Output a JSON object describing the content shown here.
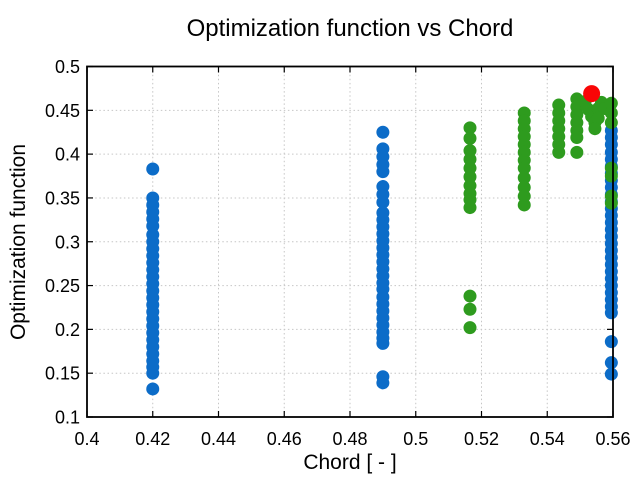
{
  "figure": {
    "title": "Optimization function vs Chord",
    "xlabel": "Chord [ - ]",
    "ylabel": "Optimization function"
  },
  "chart_data": {
    "type": "scatter",
    "title": "Optimization function vs Chord",
    "xlabel": "Chord [ - ]",
    "ylabel": "Optimization function",
    "xlim": [
      0.4,
      0.56
    ],
    "ylim": [
      0.1,
      0.5
    ],
    "xticks": [
      0.4,
      0.42,
      0.44,
      0.46,
      0.48,
      0.5,
      0.52,
      0.54,
      0.56
    ],
    "xtick_labels": [
      "0.4",
      "0.42",
      "0.44",
      "0.46",
      "0.48",
      "0.5",
      "0.52",
      "0.54",
      "0.56"
    ],
    "yticks": [
      0.1,
      0.15,
      0.2,
      0.25,
      0.3,
      0.35,
      0.4,
      0.45,
      0.5
    ],
    "ytick_labels": [
      "0.1",
      "0.15",
      "0.2",
      "0.25",
      "0.3",
      "0.35",
      "0.4",
      "0.45",
      "0.5"
    ],
    "grid": true,
    "legend": "none",
    "colors": {
      "blue": "#0c6cc8",
      "green": "#2e9b1e",
      "red": "#f90606"
    },
    "series": [
      {
        "name": "samples-blue",
        "color": "#0c6cc8",
        "marker": "circle",
        "marker_radius": 6.5,
        "points": [
          [
            0.42,
            0.383
          ],
          [
            0.42,
            0.35
          ],
          [
            0.42,
            0.342
          ],
          [
            0.42,
            0.334
          ],
          [
            0.42,
            0.326
          ],
          [
            0.42,
            0.318
          ],
          [
            0.42,
            0.308
          ],
          [
            0.42,
            0.3
          ],
          [
            0.42,
            0.292
          ],
          [
            0.42,
            0.284
          ],
          [
            0.42,
            0.276
          ],
          [
            0.42,
            0.268
          ],
          [
            0.42,
            0.26
          ],
          [
            0.42,
            0.252
          ],
          [
            0.42,
            0.244
          ],
          [
            0.42,
            0.236
          ],
          [
            0.42,
            0.228
          ],
          [
            0.42,
            0.22
          ],
          [
            0.42,
            0.212
          ],
          [
            0.42,
            0.204
          ],
          [
            0.42,
            0.196
          ],
          [
            0.42,
            0.188
          ],
          [
            0.42,
            0.18
          ],
          [
            0.42,
            0.172
          ],
          [
            0.42,
            0.164
          ],
          [
            0.42,
            0.157
          ],
          [
            0.42,
            0.15
          ],
          [
            0.42,
            0.132
          ],
          [
            0.49,
            0.425
          ],
          [
            0.49,
            0.406
          ],
          [
            0.49,
            0.397
          ],
          [
            0.49,
            0.388
          ],
          [
            0.49,
            0.38
          ],
          [
            0.49,
            0.363
          ],
          [
            0.49,
            0.354
          ],
          [
            0.49,
            0.345
          ],
          [
            0.49,
            0.333
          ],
          [
            0.49,
            0.325
          ],
          [
            0.49,
            0.317
          ],
          [
            0.49,
            0.309
          ],
          [
            0.49,
            0.301
          ],
          [
            0.49,
            0.293
          ],
          [
            0.49,
            0.285
          ],
          [
            0.49,
            0.277
          ],
          [
            0.49,
            0.269
          ],
          [
            0.49,
            0.261
          ],
          [
            0.49,
            0.253
          ],
          [
            0.49,
            0.246
          ],
          [
            0.49,
            0.237
          ],
          [
            0.49,
            0.229
          ],
          [
            0.49,
            0.221
          ],
          [
            0.49,
            0.213
          ],
          [
            0.49,
            0.205
          ],
          [
            0.49,
            0.197
          ],
          [
            0.49,
            0.19
          ],
          [
            0.49,
            0.184
          ],
          [
            0.49,
            0.146
          ],
          [
            0.49,
            0.139
          ],
          [
            0.5595,
            0.427
          ],
          [
            0.5595,
            0.419
          ],
          [
            0.5595,
            0.411
          ],
          [
            0.5595,
            0.402
          ],
          [
            0.5595,
            0.394
          ],
          [
            0.5595,
            0.386
          ],
          [
            0.5595,
            0.378
          ],
          [
            0.5595,
            0.37
          ],
          [
            0.5595,
            0.362
          ],
          [
            0.5595,
            0.354
          ],
          [
            0.5595,
            0.346
          ],
          [
            0.5595,
            0.338
          ],
          [
            0.5595,
            0.33
          ],
          [
            0.5595,
            0.322
          ],
          [
            0.5595,
            0.314
          ],
          [
            0.5595,
            0.306
          ],
          [
            0.5595,
            0.298
          ],
          [
            0.5595,
            0.29
          ],
          [
            0.5595,
            0.282
          ],
          [
            0.5595,
            0.274
          ],
          [
            0.5595,
            0.266
          ],
          [
            0.5595,
            0.258
          ],
          [
            0.5595,
            0.25
          ],
          [
            0.5595,
            0.242
          ],
          [
            0.5595,
            0.234
          ],
          [
            0.5595,
            0.226
          ],
          [
            0.5595,
            0.219
          ],
          [
            0.5595,
            0.186
          ],
          [
            0.5595,
            0.162
          ],
          [
            0.5595,
            0.149
          ]
        ]
      },
      {
        "name": "samples-green",
        "color": "#2e9b1e",
        "marker": "circle",
        "marker_radius": 6.5,
        "points": [
          [
            0.5165,
            0.43
          ],
          [
            0.5165,
            0.418
          ],
          [
            0.5165,
            0.404
          ],
          [
            0.5165,
            0.394
          ],
          [
            0.5165,
            0.384
          ],
          [
            0.5165,
            0.374
          ],
          [
            0.5165,
            0.364
          ],
          [
            0.5165,
            0.355
          ],
          [
            0.5165,
            0.348
          ],
          [
            0.5165,
            0.339
          ],
          [
            0.5165,
            0.238
          ],
          [
            0.5165,
            0.223
          ],
          [
            0.5165,
            0.202
          ],
          [
            0.533,
            0.447
          ],
          [
            0.533,
            0.438
          ],
          [
            0.533,
            0.429
          ],
          [
            0.533,
            0.42
          ],
          [
            0.533,
            0.411
          ],
          [
            0.533,
            0.402
          ],
          [
            0.533,
            0.393
          ],
          [
            0.533,
            0.384
          ],
          [
            0.533,
            0.373
          ],
          [
            0.533,
            0.362
          ],
          [
            0.533,
            0.352
          ],
          [
            0.533,
            0.342
          ],
          [
            0.5435,
            0.456
          ],
          [
            0.5435,
            0.447
          ],
          [
            0.5435,
            0.438
          ],
          [
            0.5435,
            0.429
          ],
          [
            0.5435,
            0.42
          ],
          [
            0.5435,
            0.411
          ],
          [
            0.5435,
            0.402
          ],
          [
            0.549,
            0.463
          ],
          [
            0.549,
            0.454
          ],
          [
            0.549,
            0.445
          ],
          [
            0.549,
            0.436
          ],
          [
            0.549,
            0.427
          ],
          [
            0.549,
            0.419
          ],
          [
            0.549,
            0.402
          ],
          [
            0.5515,
            0.46
          ],
          [
            0.5525,
            0.451
          ],
          [
            0.5535,
            0.443
          ],
          [
            0.5545,
            0.436
          ],
          [
            0.5555,
            0.452
          ],
          [
            0.5565,
            0.459
          ],
          [
            0.5575,
            0.452
          ],
          [
            0.5555,
            0.441
          ],
          [
            0.5545,
            0.429
          ],
          [
            0.5595,
            0.458
          ],
          [
            0.5595,
            0.447
          ],
          [
            0.5595,
            0.436
          ],
          [
            0.5595,
            0.384
          ],
          [
            0.5595,
            0.375
          ],
          [
            0.5595,
            0.352
          ],
          [
            0.5595,
            0.344
          ]
        ]
      },
      {
        "name": "best-red",
        "color": "#f90606",
        "marker": "circle",
        "marker_radius": 8.5,
        "points": [
          [
            0.5535,
            0.469
          ]
        ]
      }
    ]
  }
}
